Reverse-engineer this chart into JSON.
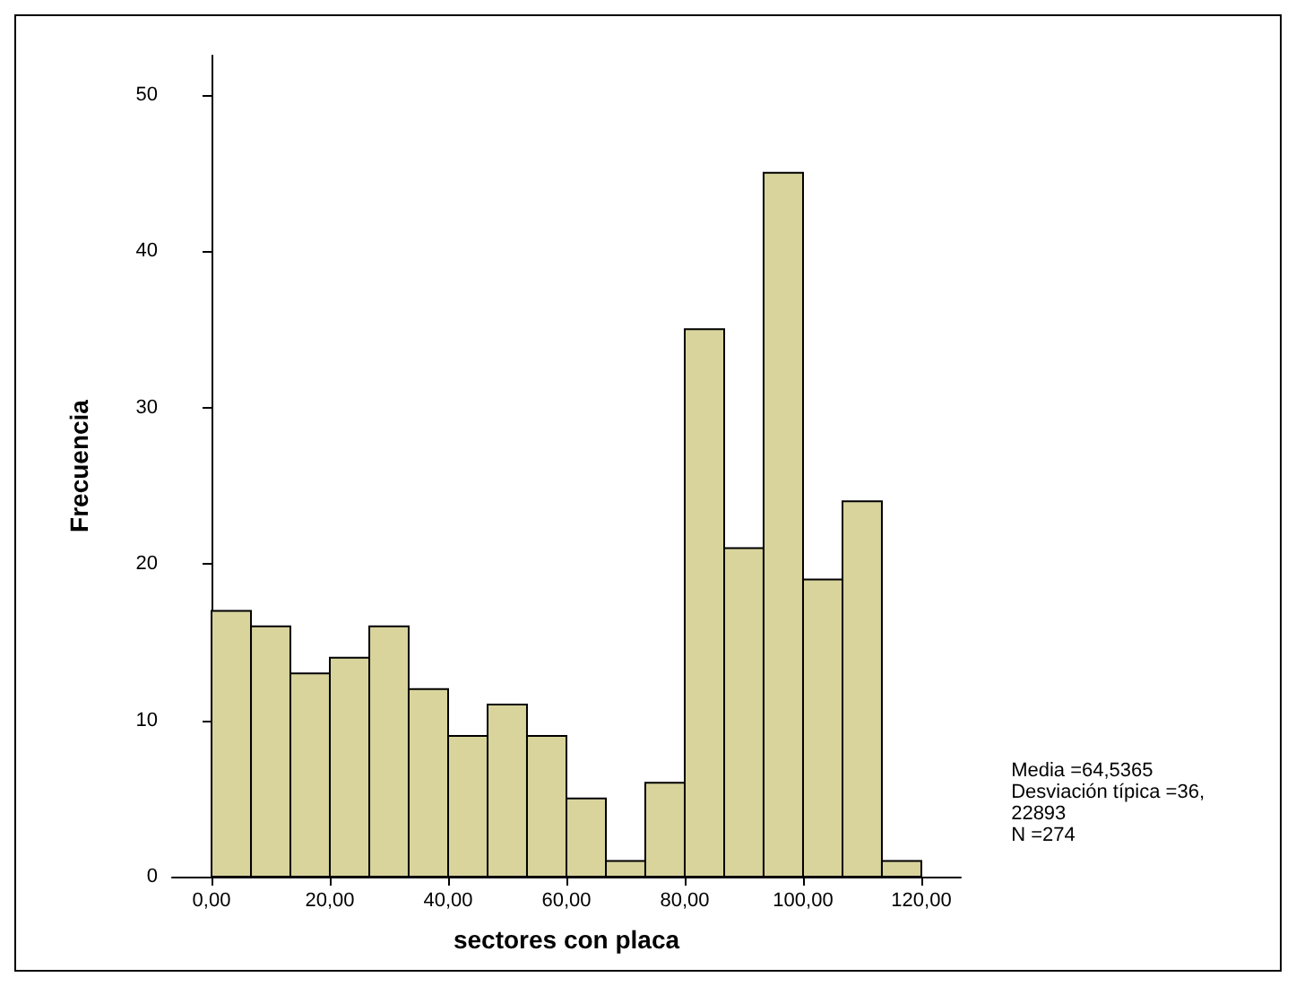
{
  "chart_data": {
    "type": "histogram",
    "xlabel": "sectores con placa",
    "ylabel": "Frecuencia",
    "bins": [
      0,
      6.67,
      13.33,
      20,
      26.67,
      33.33,
      40,
      46.67,
      53.33,
      60,
      66.67,
      73.33,
      80,
      86.67,
      93.33,
      100,
      106.67,
      113.33,
      120
    ],
    "values": [
      17,
      16,
      13,
      14,
      16,
      12,
      9,
      11,
      9,
      5,
      1,
      6,
      35,
      21,
      45,
      19,
      24,
      1
    ],
    "color": "#d8d49c",
    "xlim": [
      -6.67,
      126.67
    ],
    "xticks": [
      {
        "value": 0,
        "label": "0,00"
      },
      {
        "value": 20,
        "label": "20,00"
      },
      {
        "value": 40,
        "label": "40,00"
      },
      {
        "value": 60,
        "label": "60,00"
      },
      {
        "value": 80,
        "label": "80,00"
      },
      {
        "value": 100,
        "label": "100,00"
      },
      {
        "value": 120,
        "label": "120,00"
      }
    ],
    "ylim": [
      0,
      52.5
    ],
    "yticks": [
      0,
      10,
      20,
      30,
      40,
      50
    ],
    "annotations": [
      "Media =64,5365",
      "Desviación típica =36,\n22893",
      "N =274"
    ]
  }
}
